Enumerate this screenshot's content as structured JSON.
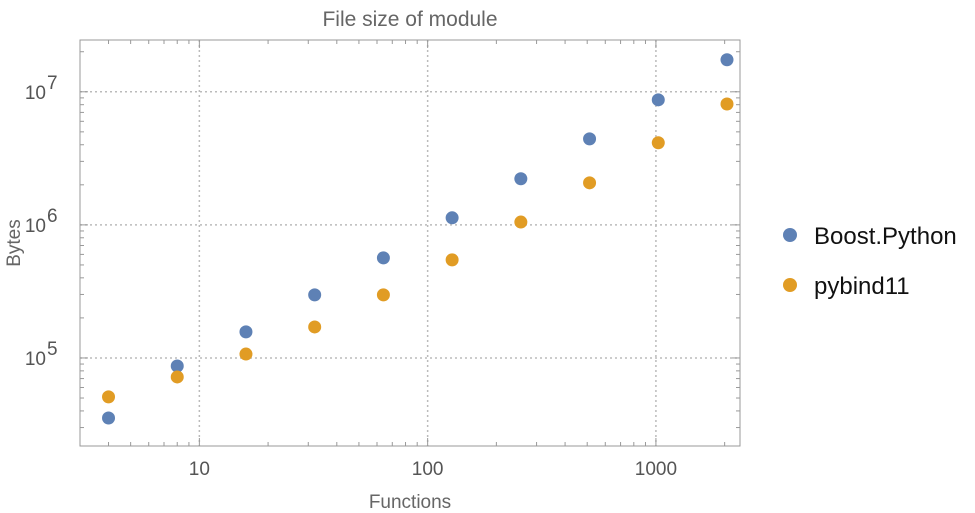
{
  "chart_data": {
    "type": "scatter",
    "title": "File size of module",
    "xlabel": "Functions",
    "ylabel": "Bytes",
    "x_scale": "log",
    "y_scale": "log",
    "xlim": [
      3,
      2335
    ],
    "ylim": [
      21800,
      24500000
    ],
    "grid": true,
    "legend_position": "right",
    "x_ticks": [
      {
        "value": 10,
        "label": "10"
      },
      {
        "value": 100,
        "label": "100"
      },
      {
        "value": 1000,
        "label": "1000"
      }
    ],
    "y_ticks": [
      {
        "value": 100000,
        "base": "10",
        "exp": "5"
      },
      {
        "value": 1000000,
        "base": "10",
        "exp": "6"
      },
      {
        "value": 10000000,
        "base": "10",
        "exp": "7"
      }
    ],
    "x": [
      4,
      8,
      16,
      32,
      64,
      128,
      256,
      512,
      1024,
      2048
    ],
    "series": [
      {
        "name": "Boost.Python",
        "color": "#5e81b5",
        "values": [
          35400,
          87000,
          157000,
          298000,
          565000,
          1130000,
          2220000,
          4430000,
          8700000,
          17400000
        ]
      },
      {
        "name": "pybind11",
        "color": "#e19c24",
        "values": [
          51000,
          72000,
          107000,
          171000,
          298000,
          546000,
          1050000,
          2070000,
          4140000,
          8100000
        ]
      }
    ]
  }
}
